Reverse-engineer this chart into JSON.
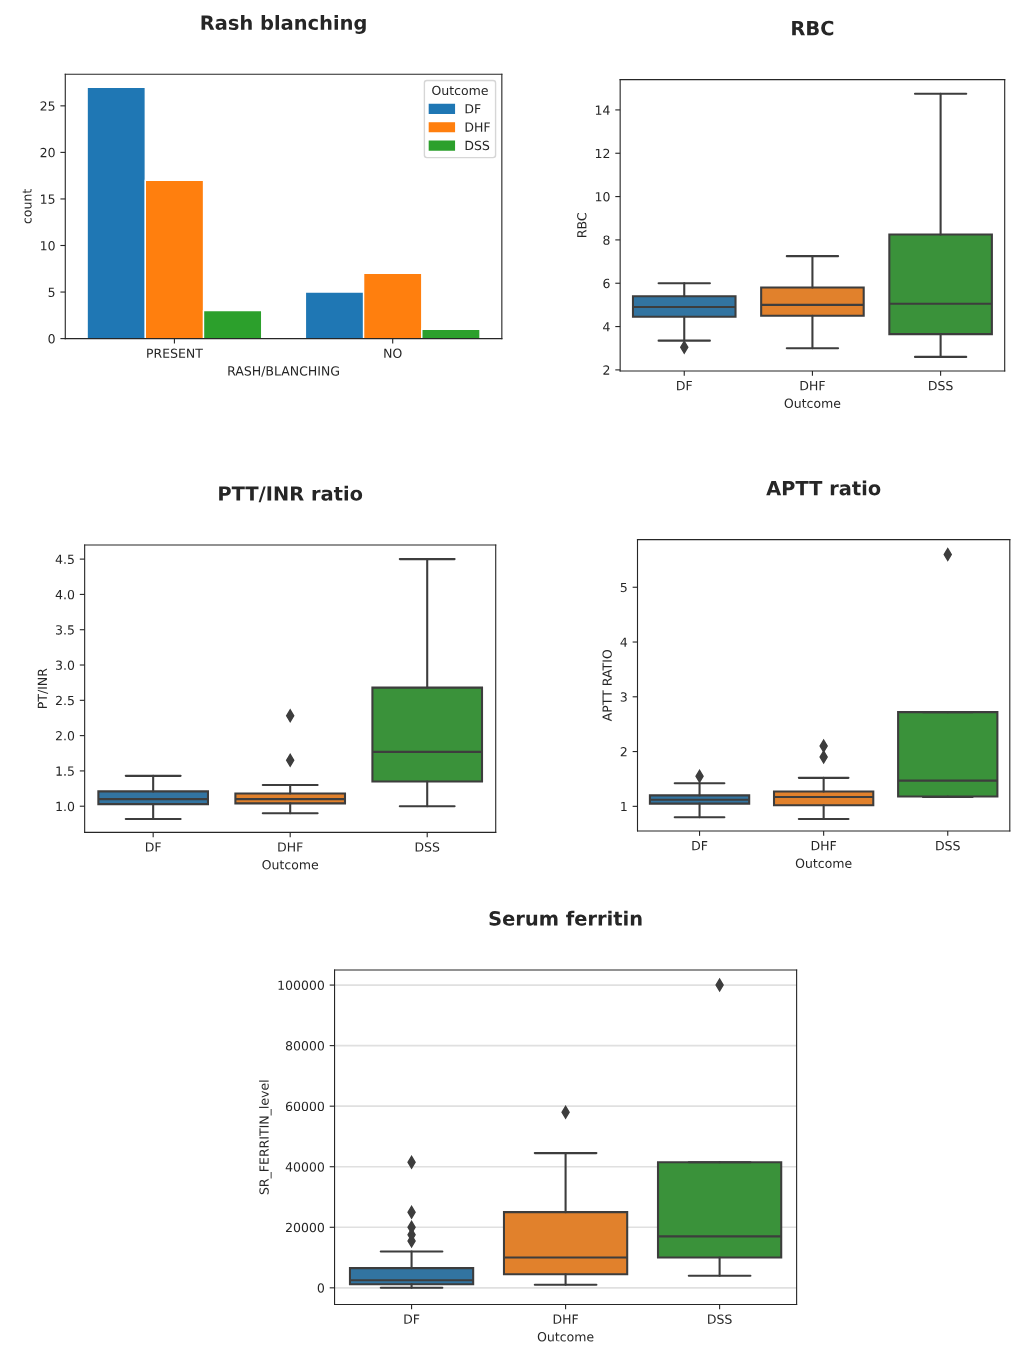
{
  "chart_data": [
    {
      "type": "bar",
      "title": "Rash blanching",
      "xlabel": "RASH/BLANCHING",
      "ylabel": "count",
      "legend_title": "Outcome",
      "legend": "top right",
      "categories": [
        "PRESENT",
        "NO"
      ],
      "series": [
        {
          "name": "DF",
          "color": "#1f77b4",
          "values": [
            27,
            5
          ]
        },
        {
          "name": "DHF",
          "color": "#ff7f0e",
          "values": [
            17,
            7
          ]
        },
        {
          "name": "DSS",
          "color": "#2ca02c",
          "values": [
            3,
            1
          ]
        }
      ],
      "ylim": [
        0,
        28.4
      ],
      "yticks": [
        0,
        5,
        10,
        15,
        20,
        25
      ],
      "grid": false
    },
    {
      "type": "box",
      "title": "RBC",
      "xlabel": "Outcome",
      "ylabel": "RBC",
      "categories": [
        "DF",
        "DHF",
        "DSS"
      ],
      "colors": [
        "#3274a1",
        "#e1812c",
        "#3a923a"
      ],
      "boxes": [
        {
          "low": 3.35,
          "q1": 4.45,
          "median": 4.9,
          "q3": 5.4,
          "high": 6.0,
          "outliers": [
            3.05
          ]
        },
        {
          "low": 3.0,
          "q1": 4.5,
          "median": 5.0,
          "q3": 5.8,
          "high": 7.25
        },
        {
          "low": 2.6,
          "q1": 3.65,
          "median": 5.05,
          "q3": 8.25,
          "high": 14.75
        }
      ],
      "ylim": [
        1.95,
        15.4
      ],
      "yticks": [
        2,
        4,
        6,
        8,
        10,
        12,
        14
      ],
      "grid": false
    },
    {
      "type": "box",
      "title": "PTT/INR ratio",
      "xlabel": "Outcome",
      "ylabel": "PT/INR",
      "categories": [
        "DF",
        "DHF",
        "DSS"
      ],
      "colors": [
        "#3274a1",
        "#e1812c",
        "#3a923a"
      ],
      "boxes": [
        {
          "low": 0.82,
          "q1": 1.03,
          "median": 1.1,
          "q3": 1.21,
          "high": 1.43
        },
        {
          "low": 0.9,
          "q1": 1.04,
          "median": 1.1,
          "q3": 1.18,
          "high": 1.3,
          "outliers": [
            1.65,
            2.28
          ]
        },
        {
          "low": 1.0,
          "q1": 1.35,
          "median": 1.77,
          "q3": 2.68,
          "high": 4.5
        }
      ],
      "ylim": [
        0.63,
        4.7
      ],
      "yticks": [
        {
          "value": 1,
          "label": "1.0"
        },
        1.5,
        {
          "value": 2,
          "label": "2.0"
        },
        2.5,
        {
          "value": 3,
          "label": "3.0"
        },
        3.5,
        {
          "value": 4,
          "label": "4.0"
        },
        4.5
      ],
      "grid": false
    },
    {
      "type": "box",
      "title": "APTT ratio",
      "xlabel": "Outcome",
      "ylabel": "APTT RATIO",
      "categories": [
        "DF",
        "DHF",
        "DSS"
      ],
      "colors": [
        "#3274a1",
        "#e1812c",
        "#3a923a"
      ],
      "boxes": [
        {
          "low": 0.8,
          "q1": 1.05,
          "median": 1.12,
          "q3": 1.2,
          "high": 1.42,
          "outliers": [
            1.55
          ]
        },
        {
          "low": 0.77,
          "q1": 1.02,
          "median": 1.17,
          "q3": 1.27,
          "high": 1.52,
          "outliers": [
            1.9,
            2.1
          ]
        },
        {
          "low": 1.17,
          "q1": 1.18,
          "median": 1.47,
          "q3": 2.72,
          "high": 2.72,
          "outliers": [
            5.6
          ]
        }
      ],
      "ylim": [
        0.55,
        5.87
      ],
      "yticks": [
        1,
        2,
        3,
        4,
        5
      ],
      "grid": false
    },
    {
      "type": "box",
      "title": "Serum ferritin",
      "xlabel": "Outcome",
      "ylabel": "SR_FERRITIN_level",
      "categories": [
        "DF",
        "DHF",
        "DSS"
      ],
      "colors": [
        "#3274a1",
        "#e1812c",
        "#3a923a"
      ],
      "boxes": [
        {
          "low": 0,
          "q1": 1200,
          "median": 2500,
          "q3": 6500,
          "high": 12000,
          "outliers": [
            15500,
            17500,
            20000,
            25000,
            41500
          ]
        },
        {
          "low": 1000,
          "q1": 4500,
          "median": 10000,
          "q3": 25000,
          "high": 44500,
          "outliers": [
            58000
          ]
        },
        {
          "low": 4000,
          "q1": 10000,
          "median": 17000,
          "q3": 41500,
          "high": 41500,
          "outliers": [
            100000
          ]
        }
      ],
      "ylim": [
        -5500,
        105000
      ],
      "yticks": [
        0,
        20000,
        40000,
        60000,
        80000,
        100000
      ],
      "grid": "y"
    }
  ]
}
